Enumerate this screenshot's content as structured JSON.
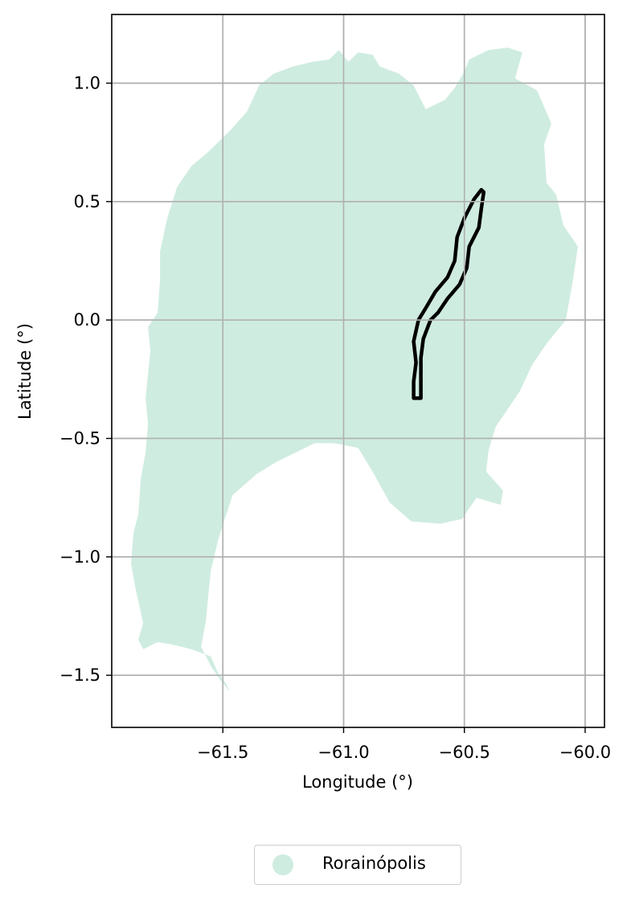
{
  "chart_data": {
    "type": "map",
    "xlabel": "Longitude (°)",
    "ylabel": "Latitude (°)",
    "xlim": [
      -61.96,
      -59.92
    ],
    "ylim": [
      -1.72,
      1.29
    ],
    "grid": true,
    "x_ticks": [
      -61.5,
      -61.0,
      -60.5,
      -60.0
    ],
    "x_tick_labels": [
      "−61.5",
      "−61.0",
      "−60.5",
      "−60.0"
    ],
    "y_ticks": [
      1.0,
      0.5,
      0.0,
      -0.5,
      -1.0,
      -1.5
    ],
    "y_tick_labels": [
      "1.0",
      "0.5",
      "0.0",
      "−0.5",
      "−1.0",
      "−1.5"
    ],
    "legend_position": "bottom-center",
    "colors": {
      "region_fill": "#cfece0",
      "outline": "#000000",
      "grid": "#b0b0b0"
    },
    "regions": [
      {
        "name": "Rorainópolis",
        "coords": [
          [
            -61.47,
            -1.57
          ],
          [
            -61.49,
            -1.53
          ],
          [
            -61.52,
            -1.49
          ],
          [
            -61.55,
            -1.42
          ],
          [
            -61.63,
            -1.39
          ],
          [
            -61.71,
            -1.37
          ],
          [
            -61.77,
            -1.36
          ],
          [
            -61.83,
            -1.39
          ],
          [
            -61.85,
            -1.35
          ],
          [
            -61.83,
            -1.28
          ],
          [
            -61.86,
            -1.14
          ],
          [
            -61.88,
            -1.03
          ],
          [
            -61.87,
            -0.9
          ],
          [
            -61.85,
            -0.82
          ],
          [
            -61.84,
            -0.67
          ],
          [
            -61.82,
            -0.56
          ],
          [
            -61.81,
            -0.44
          ],
          [
            -61.82,
            -0.33
          ],
          [
            -61.81,
            -0.23
          ],
          [
            -61.8,
            -0.13
          ],
          [
            -61.81,
            -0.03
          ],
          [
            -61.77,
            0.03
          ],
          [
            -61.76,
            0.17
          ],
          [
            -61.76,
            0.29
          ],
          [
            -61.73,
            0.43
          ],
          [
            -61.69,
            0.56
          ],
          [
            -61.63,
            0.65
          ],
          [
            -61.56,
            0.71
          ],
          [
            -61.47,
            0.8
          ],
          [
            -61.4,
            0.88
          ],
          [
            -61.35,
            0.99
          ],
          [
            -61.29,
            1.04
          ],
          [
            -61.21,
            1.07
          ],
          [
            -61.13,
            1.09
          ],
          [
            -61.06,
            1.1
          ],
          [
            -61.02,
            1.14
          ],
          [
            -60.98,
            1.09
          ],
          [
            -60.94,
            1.13
          ],
          [
            -60.88,
            1.12
          ],
          [
            -60.85,
            1.07
          ],
          [
            -60.77,
            1.04
          ],
          [
            -60.71,
            0.99
          ],
          [
            -60.66,
            0.89
          ],
          [
            -60.58,
            0.93
          ],
          [
            -60.54,
            0.98
          ],
          [
            -60.5,
            1.05
          ],
          [
            -60.48,
            1.1
          ],
          [
            -60.44,
            1.12
          ],
          [
            -60.4,
            1.14
          ],
          [
            -60.32,
            1.15
          ],
          [
            -60.26,
            1.13
          ],
          [
            -60.29,
            1.02
          ],
          [
            -60.2,
            0.97
          ],
          [
            -60.14,
            0.83
          ],
          [
            -60.17,
            0.74
          ],
          [
            -60.16,
            0.58
          ],
          [
            -60.12,
            0.53
          ],
          [
            -60.09,
            0.4
          ],
          [
            -60.03,
            0.31
          ],
          [
            -60.05,
            0.17
          ],
          [
            -60.08,
            0.0
          ],
          [
            -60.16,
            -0.1
          ],
          [
            -60.22,
            -0.19
          ],
          [
            -60.27,
            -0.3
          ],
          [
            -60.33,
            -0.39
          ],
          [
            -60.37,
            -0.45
          ],
          [
            -60.4,
            -0.55
          ],
          [
            -60.41,
            -0.64
          ],
          [
            -60.34,
            -0.72
          ],
          [
            -60.35,
            -0.78
          ],
          [
            -60.45,
            -0.75
          ],
          [
            -60.51,
            -0.84
          ],
          [
            -60.6,
            -0.86
          ],
          [
            -60.72,
            -0.85
          ],
          [
            -60.81,
            -0.77
          ],
          [
            -60.88,
            -0.64
          ],
          [
            -60.94,
            -0.54
          ],
          [
            -61.04,
            -0.52
          ],
          [
            -61.12,
            -0.52
          ],
          [
            -61.2,
            -0.56
          ],
          [
            -61.28,
            -0.6
          ],
          [
            -61.36,
            -0.65
          ],
          [
            -61.46,
            -0.74
          ],
          [
            -61.52,
            -0.93
          ],
          [
            -61.55,
            -1.06
          ],
          [
            -61.56,
            -1.16
          ],
          [
            -61.57,
            -1.27
          ],
          [
            -61.59,
            -1.38
          ],
          [
            -61.55,
            -1.46
          ],
          [
            -61.51,
            -1.52
          ]
        ]
      }
    ],
    "highlight_outlines": [
      [
        [
          -60.43,
          0.55
        ],
        [
          -60.46,
          0.51
        ],
        [
          -60.5,
          0.43
        ],
        [
          -60.53,
          0.35
        ],
        [
          -60.54,
          0.25
        ],
        [
          -60.57,
          0.18
        ],
        [
          -60.62,
          0.12
        ],
        [
          -60.66,
          0.05
        ],
        [
          -60.69,
          0.0
        ],
        [
          -60.71,
          -0.09
        ],
        [
          -60.7,
          -0.18
        ],
        [
          -60.71,
          -0.26
        ],
        [
          -60.71,
          -0.33
        ],
        [
          -60.68,
          -0.33
        ],
        [
          -60.68,
          -0.25
        ],
        [
          -60.68,
          -0.16
        ],
        [
          -60.67,
          -0.08
        ],
        [
          -60.64,
          0.0
        ],
        [
          -60.61,
          0.03
        ],
        [
          -60.57,
          0.09
        ],
        [
          -60.52,
          0.15
        ],
        [
          -60.49,
          0.22
        ],
        [
          -60.48,
          0.31
        ],
        [
          -60.44,
          0.39
        ],
        [
          -60.43,
          0.47
        ],
        [
          -60.42,
          0.54
        ]
      ]
    ],
    "legend": [
      {
        "name": "Rorainópolis",
        "color": "#cfece0"
      }
    ]
  }
}
